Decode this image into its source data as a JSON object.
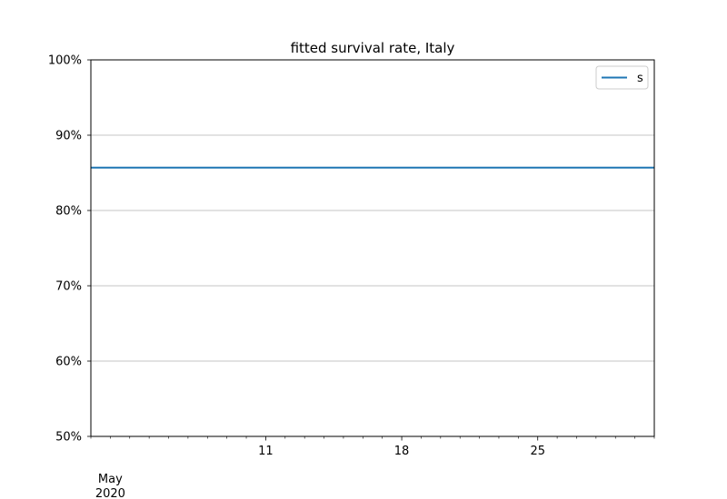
{
  "chart_data": {
    "type": "line",
    "title": "fitted survival rate, Italy",
    "xlabel": "",
    "ylabel": "",
    "x_axis": {
      "kind": "date",
      "range": [
        "2020-05-02",
        "2020-05-31"
      ],
      "major_ticks": [
        {
          "date": "2020-05-11",
          "label": "11"
        },
        {
          "date": "2020-05-18",
          "label": "18"
        },
        {
          "date": "2020-05-25",
          "label": "25"
        }
      ],
      "minor_tick_dates": [
        "2020-05-02",
        "2020-05-03",
        "2020-05-04",
        "2020-05-05",
        "2020-05-06",
        "2020-05-07",
        "2020-05-08",
        "2020-05-09",
        "2020-05-10",
        "2020-05-12",
        "2020-05-13",
        "2020-05-14",
        "2020-05-15",
        "2020-05-16",
        "2020-05-17",
        "2020-05-19",
        "2020-05-20",
        "2020-05-21",
        "2020-05-22",
        "2020-05-23",
        "2020-05-24",
        "2020-05-26",
        "2020-05-27",
        "2020-05-28",
        "2020-05-29",
        "2020-05-30",
        "2020-05-31"
      ],
      "secondary_label": {
        "date": "2020-05-03",
        "lines": [
          "May",
          "2020"
        ]
      }
    },
    "y_axis": {
      "ylim": [
        0.5,
        1.0
      ],
      "ticks": [
        {
          "value": 0.5,
          "label": "50%"
        },
        {
          "value": 0.6,
          "label": "60%"
        },
        {
          "value": 0.7,
          "label": "70%"
        },
        {
          "value": 0.8,
          "label": "80%"
        },
        {
          "value": 0.9,
          "label": "90%"
        },
        {
          "value": 1.0,
          "label": "100%"
        }
      ],
      "grid": true
    },
    "series": [
      {
        "name": "s",
        "color": "#1f77b4",
        "x": [
          "2020-05-02",
          "2020-05-31"
        ],
        "y": [
          0.857,
          0.857
        ]
      }
    ],
    "legend": {
      "position": "top-right"
    }
  }
}
